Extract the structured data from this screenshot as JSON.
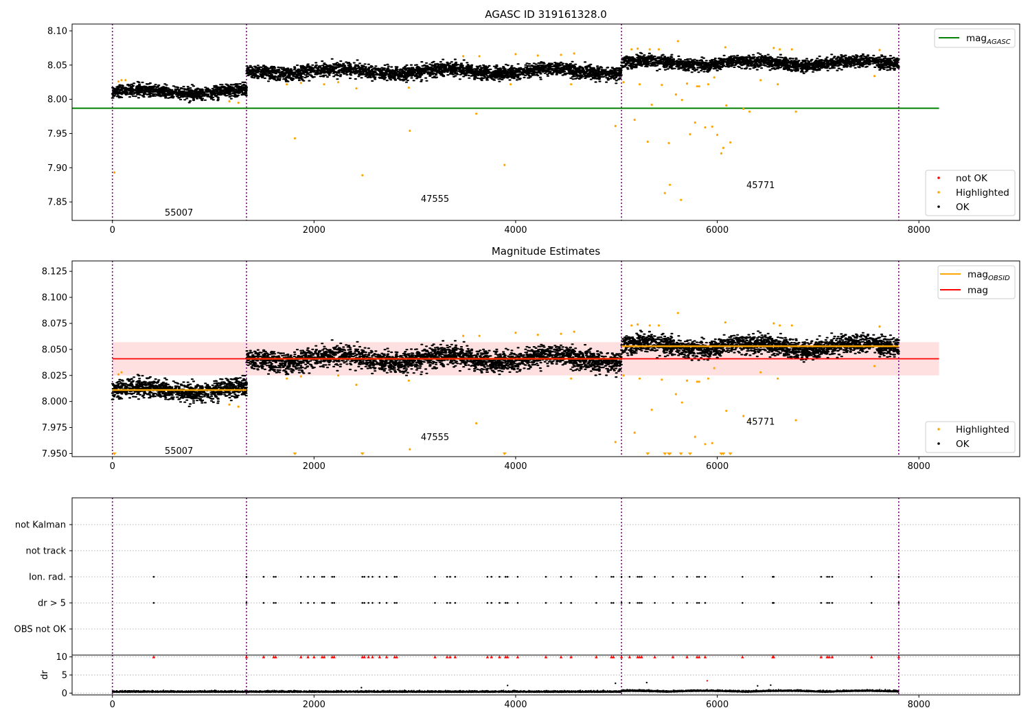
{
  "chart_data": [
    {
      "type": "scatter",
      "title": "AGASC ID 319161328.0",
      "xlim": [
        -400,
        9000
      ],
      "ylim": [
        7.823,
        8.11
      ],
      "x_ticks": [
        0,
        2000,
        4000,
        6000,
        8000
      ],
      "y_ticks": [
        7.85,
        7.9,
        7.95,
        8.0,
        8.05,
        8.1
      ],
      "y_tick_labels": [
        "7.85",
        "7.90",
        "7.95",
        "8.00",
        "8.05",
        "8.10"
      ],
      "obsid_boundaries": [
        0,
        1330,
        5050,
        7800
      ],
      "obsid_labels": [
        {
          "text": "55007",
          "x": 660,
          "y": 7.835
        },
        {
          "text": "47555",
          "x": 3200,
          "y": 7.855
        },
        {
          "text": "45771",
          "x": 6430,
          "y": 7.875
        }
      ],
      "mag_agasc": 7.987,
      "segments": [
        {
          "x0": 0,
          "x1": 1330,
          "center": 8.011,
          "spread": 0.009
        },
        {
          "x0": 1330,
          "x1": 5050,
          "center": 8.041,
          "spread": 0.01
        },
        {
          "x0": 5050,
          "x1": 7800,
          "center": 8.053,
          "spread": 0.009
        }
      ],
      "highlighted_points": [
        [
          20,
          7.893
        ],
        [
          60,
          8.026
        ],
        [
          90,
          8.028
        ],
        [
          130,
          8.028
        ],
        [
          1160,
          7.997
        ],
        [
          1250,
          7.995
        ],
        [
          1730,
          8.022
        ],
        [
          1810,
          7.943
        ],
        [
          1870,
          8.024
        ],
        [
          2100,
          8.022
        ],
        [
          2240,
          8.025
        ],
        [
          2420,
          8.016
        ],
        [
          2480,
          7.889
        ],
        [
          2940,
          8.017
        ],
        [
          2950,
          7.954
        ],
        [
          3480,
          8.063
        ],
        [
          3610,
          7.979
        ],
        [
          3640,
          8.063
        ],
        [
          3890,
          7.904
        ],
        [
          3950,
          8.022
        ],
        [
          4000,
          8.066
        ],
        [
          4220,
          8.064
        ],
        [
          4450,
          8.065
        ],
        [
          4550,
          8.022
        ],
        [
          4580,
          8.067
        ],
        [
          4990,
          7.961
        ],
        [
          5070,
          8.025
        ],
        [
          5150,
          8.073
        ],
        [
          5180,
          7.97
        ],
        [
          5210,
          8.074
        ],
        [
          5230,
          8.022
        ],
        [
          5310,
          7.938
        ],
        [
          5330,
          8.073
        ],
        [
          5350,
          7.992
        ],
        [
          5420,
          8.073
        ],
        [
          5450,
          8.021
        ],
        [
          5480,
          7.863
        ],
        [
          5520,
          7.936
        ],
        [
          5530,
          7.875
        ],
        [
          5590,
          8.007
        ],
        [
          5610,
          8.085
        ],
        [
          5640,
          7.853
        ],
        [
          5650,
          7.999
        ],
        [
          5700,
          8.023
        ],
        [
          5730,
          7.949
        ],
        [
          5780,
          7.966
        ],
        [
          5800,
          8.019
        ],
        [
          5820,
          8.019
        ],
        [
          5880,
          7.959
        ],
        [
          5910,
          8.022
        ],
        [
          5950,
          7.96
        ],
        [
          5970,
          8.032
        ],
        [
          6000,
          7.948
        ],
        [
          6040,
          7.921
        ],
        [
          6060,
          7.929
        ],
        [
          6080,
          8.076
        ],
        [
          6090,
          7.991
        ],
        [
          6130,
          7.937
        ],
        [
          6260,
          7.986
        ],
        [
          6320,
          7.982
        ],
        [
          6430,
          8.028
        ],
        [
          6560,
          8.075
        ],
        [
          6600,
          8.022
        ],
        [
          6620,
          8.073
        ],
        [
          6740,
          8.073
        ],
        [
          6780,
          7.982
        ],
        [
          7560,
          8.034
        ],
        [
          7610,
          8.072
        ]
      ],
      "legend_lines": [
        {
          "label": "mag",
          "sub": "AGASC",
          "color": "#008000"
        }
      ],
      "legend_points": [
        {
          "label": "not OK",
          "color": "#ff0000"
        },
        {
          "label": "Highlighted",
          "color": "#ffa500"
        },
        {
          "label": "OK",
          "color": "#000000"
        }
      ]
    },
    {
      "type": "scatter",
      "title": "Magnitude Estimates",
      "xlim": [
        -400,
        9000
      ],
      "ylim": [
        7.947,
        8.135
      ],
      "x_ticks": [
        0,
        2000,
        4000,
        6000,
        8000
      ],
      "y_ticks": [
        7.95,
        7.975,
        8.0,
        8.025,
        8.05,
        8.075,
        8.1,
        8.125
      ],
      "y_tick_labels": [
        "7.950",
        "7.975",
        "8.000",
        "8.025",
        "8.050",
        "8.075",
        "8.100",
        "8.125"
      ],
      "obsid_boundaries": [
        0,
        1330,
        5050,
        7800
      ],
      "obsid_labels": [
        {
          "text": "55007",
          "x": 660,
          "y": 7.953
        },
        {
          "text": "47555",
          "x": 3200,
          "y": 7.966
        },
        {
          "text": "45771",
          "x": 6430,
          "y": 7.981
        }
      ],
      "mag": 8.041,
      "mag_band": [
        8.025,
        8.057
      ],
      "mag_obsid": [
        {
          "x0": 0,
          "x1": 1330,
          "value": 8.011
        },
        {
          "x0": 1330,
          "x1": 5050,
          "value": 8.041
        },
        {
          "x0": 5050,
          "x1": 7800,
          "value": 8.053
        }
      ],
      "segments": [
        {
          "x0": 0,
          "x1": 1330,
          "center": 8.011,
          "spread": 0.009
        },
        {
          "x0": 1330,
          "x1": 5050,
          "center": 8.041,
          "spread": 0.01
        },
        {
          "x0": 5050,
          "x1": 7800,
          "center": 8.053,
          "spread": 0.009
        }
      ],
      "highlighted_points": [
        [
          60,
          8.026
        ],
        [
          90,
          8.028
        ],
        [
          1160,
          7.997
        ],
        [
          1250,
          7.995
        ],
        [
          1730,
          8.022
        ],
        [
          1870,
          8.024
        ],
        [
          2240,
          8.025
        ],
        [
          2420,
          8.016
        ],
        [
          2940,
          8.02
        ],
        [
          2950,
          7.954
        ],
        [
          3480,
          8.063
        ],
        [
          3610,
          7.979
        ],
        [
          3640,
          8.063
        ],
        [
          4000,
          8.066
        ],
        [
          4220,
          8.064
        ],
        [
          4450,
          8.065
        ],
        [
          4550,
          8.022
        ],
        [
          4580,
          8.067
        ],
        [
          4990,
          7.961
        ],
        [
          5070,
          8.025
        ],
        [
          5150,
          8.073
        ],
        [
          5180,
          7.97
        ],
        [
          5210,
          8.074
        ],
        [
          5230,
          8.022
        ],
        [
          5330,
          8.073
        ],
        [
          5350,
          7.992
        ],
        [
          5420,
          8.073
        ],
        [
          5450,
          8.021
        ],
        [
          5590,
          8.007
        ],
        [
          5610,
          8.085
        ],
        [
          5650,
          7.999
        ],
        [
          5700,
          8.02
        ],
        [
          5780,
          7.966
        ],
        [
          5800,
          8.019
        ],
        [
          5820,
          8.019
        ],
        [
          5880,
          7.959
        ],
        [
          5910,
          8.022
        ],
        [
          5950,
          7.96
        ],
        [
          5970,
          8.032
        ],
        [
          6080,
          8.076
        ],
        [
          6090,
          7.991
        ],
        [
          6260,
          7.986
        ],
        [
          6320,
          7.982
        ],
        [
          6430,
          8.028
        ],
        [
          6560,
          8.075
        ],
        [
          6600,
          8.022
        ],
        [
          6620,
          8.073
        ],
        [
          6740,
          8.073
        ],
        [
          6780,
          7.982
        ],
        [
          7560,
          8.034
        ],
        [
          7610,
          8.072
        ]
      ],
      "below_range_x": [
        20,
        1810,
        2480,
        3890,
        5310,
        5480,
        5520,
        5530,
        5640,
        5730,
        6040,
        6060,
        6130
      ],
      "legend_lines": [
        {
          "label": "mag",
          "sub": "OBSID",
          "color": "#ffa500"
        },
        {
          "label": "mag",
          "sub": "",
          "color": "#ff0000"
        }
      ],
      "legend_points": [
        {
          "label": "Highlighted",
          "color": "#ffa500"
        },
        {
          "label": "OK",
          "color": "#000000"
        }
      ]
    },
    {
      "type": "scatter",
      "title": "",
      "xlim": [
        -400,
        9000
      ],
      "x_ticks": [
        0,
        2000,
        4000,
        6000,
        8000
      ],
      "flag_rows": [
        "not Kalman",
        "not track",
        "Ion. rad.",
        "dr > 5",
        "OBS not OK"
      ],
      "obsid_boundaries": [
        0,
        1330,
        5050,
        7800
      ],
      "flag_x": [
        410,
        1330,
        1500,
        1600,
        1620,
        1870,
        1940,
        2000,
        2080,
        2100,
        2180,
        2200,
        2480,
        2500,
        2540,
        2580,
        2650,
        2720,
        2800,
        2820,
        3200,
        3320,
        3350,
        3400,
        3720,
        3760,
        3840,
        3900,
        3920,
        4020,
        4300,
        4450,
        4550,
        4800,
        4950,
        4970,
        5050,
        5130,
        5210,
        5230,
        5250,
        5380,
        5560,
        5700,
        5800,
        5820,
        5880,
        6250,
        6550,
        6560,
        7030,
        7090,
        7110,
        7140,
        7530,
        7800
      ]
    },
    {
      "type": "scatter",
      "title": "",
      "ylabel": "dr",
      "xlim": [
        -400,
        9000
      ],
      "ylim": [
        -0.5,
        10.5
      ],
      "x_ticks": [
        0,
        2000,
        4000,
        6000,
        8000
      ],
      "y_ticks": [
        0,
        5,
        10
      ],
      "y_tick_labels": [
        "0",
        "5",
        "10"
      ],
      "obsid_boundaries": [
        0,
        1330,
        5050,
        7800
      ],
      "outliers": [
        [
          2470,
          1.5
        ],
        [
          3920,
          2.1
        ],
        [
          4990,
          2.7
        ],
        [
          5300,
          2.9
        ],
        [
          5900,
          3.4
        ],
        [
          6400,
          2.0
        ],
        [
          6530,
          2.2
        ]
      ],
      "clipped_marker_value": 10
    }
  ]
}
